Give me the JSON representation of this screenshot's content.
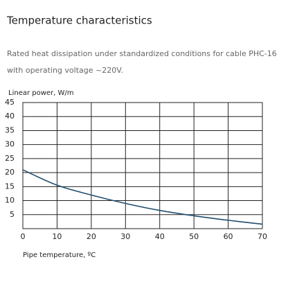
{
  "header": {
    "title": "Temperature characteristics",
    "description": [
      "Rated heat dissipation under standardized conditions for cable PHC-16",
      "with operating voltage ~220V."
    ]
  },
  "chart_data": {
    "type": "line",
    "ylabel": "Linear power, W/m",
    "xlabel": "Pipe temperature, ºC",
    "x": [
      0,
      10,
      20,
      30,
      40,
      50,
      60,
      70
    ],
    "series": [
      {
        "name": "PHC-16",
        "color": "#1f4e6e",
        "values": [
          21,
          15.5,
          12,
          9,
          6.5,
          4.6,
          3,
          1.6
        ]
      }
    ],
    "xlim": [
      0,
      70
    ],
    "xticks": [
      0,
      10,
      20,
      30,
      40,
      50,
      60,
      70
    ],
    "ylim": [
      0,
      45
    ],
    "yticks": [
      5,
      10,
      15,
      20,
      25,
      30,
      35,
      40,
      45
    ],
    "grid": true
  }
}
